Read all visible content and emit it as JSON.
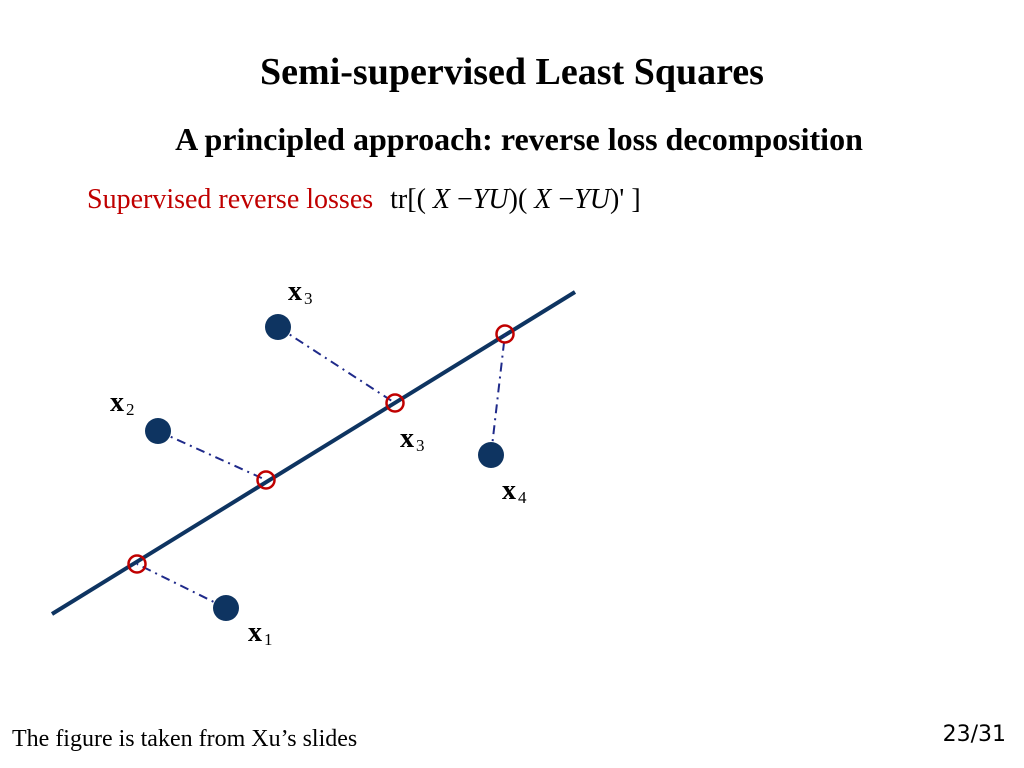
{
  "slide": {
    "title": "Semi-supervised Least Squares",
    "subtitle": "A principled approach: reverse loss decomposition",
    "loss_label": "Supervised reverse losses",
    "formula": {
      "prefix": "tr[(",
      "X": "X",
      "minus": "−",
      "YU": "YU",
      "mid": ")(",
      "suffix": ")' ]"
    },
    "footer_note": "The figure is taken from Xu’s slides",
    "page_number": "23/31"
  },
  "diagram": {
    "point_labels": [
      {
        "main": "x",
        "sub": "1"
      },
      {
        "main": "x",
        "sub": "2"
      },
      {
        "main": "x",
        "sub": "3"
      },
      {
        "main": "x",
        "sub": "4"
      },
      {
        "main": "x",
        "sub": "3"
      }
    ],
    "colors": {
      "line": "#0e3461",
      "points": "#0e3461",
      "projections": "#c00000",
      "dashes": "#1f2a8a"
    }
  }
}
